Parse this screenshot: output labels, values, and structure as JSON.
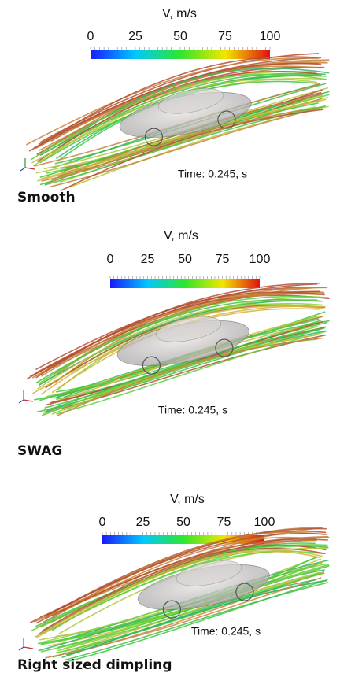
{
  "panels": [
    {
      "legend_title": "V, m/s",
      "ticks": [
        0,
        25,
        50,
        75,
        100
      ],
      "time_label": "Time: 0.245, s",
      "caption": "Smooth"
    },
    {
      "legend_title": "V, m/s",
      "ticks": [
        0,
        25,
        50,
        75,
        100
      ],
      "time_label": "Time: 0.245, s",
      "caption": "SWAG"
    },
    {
      "legend_title": "V, m/s",
      "ticks": [
        0,
        25,
        50,
        75,
        100
      ],
      "time_label": "Time: 0.245, s",
      "caption": "Right sized dimpling"
    }
  ]
}
